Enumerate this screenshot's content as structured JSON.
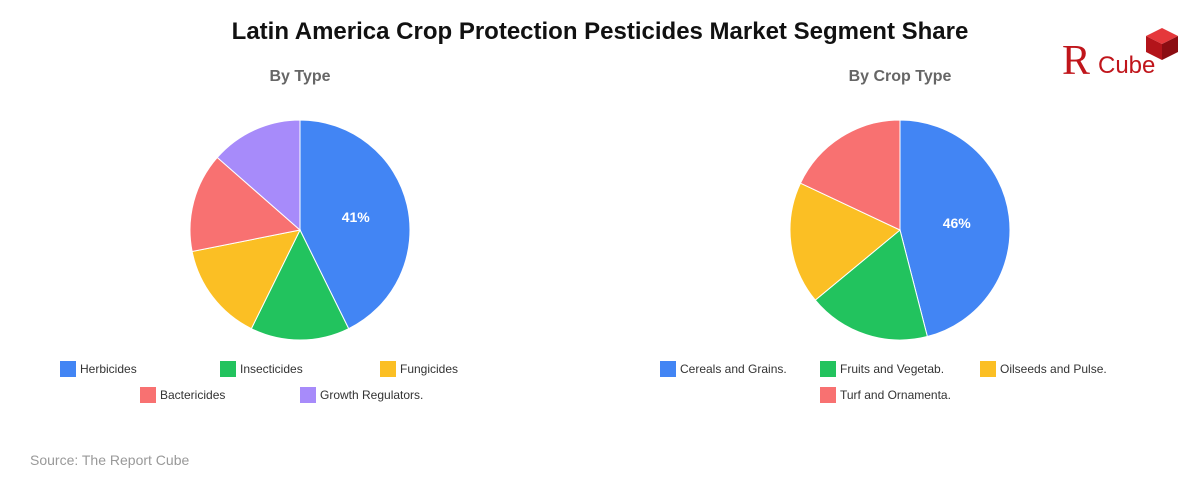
{
  "page": {
    "title": "Latin America Crop Protection Pesticides Market Segment Share",
    "source": "Source: The Report Cube"
  },
  "logo": {
    "letter": "Я",
    "word": "Cube",
    "color": "#c0151b",
    "icon": "red-cube-icon"
  },
  "chart_data": [
    {
      "type": "pie",
      "title": "By Type",
      "categories": [
        "Herbicides",
        "Insecticides",
        "Fungicides",
        "Bactericides",
        "Growth Regulators."
      ],
      "values": [
        41,
        14,
        14,
        14,
        13
      ],
      "colors": [
        "#4285f4",
        "#22c35e",
        "#fbbf24",
        "#f87171",
        "#a78bfa"
      ],
      "data_labels": [
        "41%",
        "",
        "",
        "",
        ""
      ],
      "start_angle_deg": 0,
      "direction": "clockwise",
      "legend_position": "bottom"
    },
    {
      "type": "pie",
      "title": "By Crop Type",
      "categories": [
        "Cereals and Grains.",
        "Fruits and Vegetab.",
        "Oilseeds and Pulse.",
        "Turf and Ornamenta."
      ],
      "values": [
        46,
        18,
        18,
        18
      ],
      "colors": [
        "#4285f4",
        "#22c35e",
        "#fbbf24",
        "#f87171"
      ],
      "data_labels": [
        "46%",
        "",
        "",
        ""
      ],
      "start_angle_deg": 0,
      "direction": "clockwise",
      "legend_position": "bottom"
    }
  ]
}
